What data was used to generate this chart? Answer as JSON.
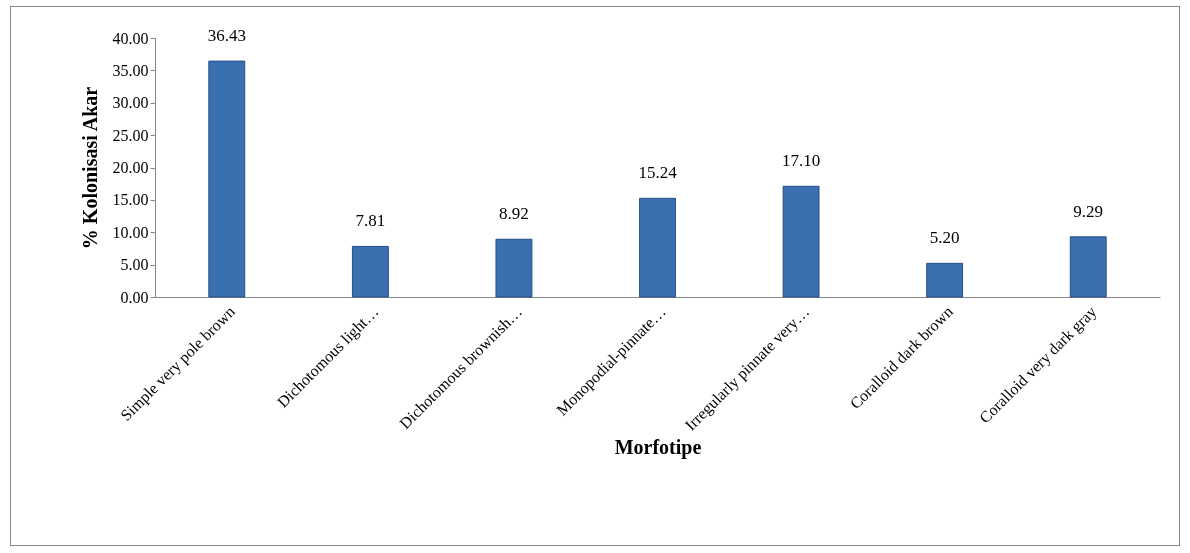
{
  "chart_data": {
    "type": "bar",
    "xlabel": "Morfotipe",
    "ylabel": "% Kolonisasi Akar",
    "categories": [
      "Simple very pole brown",
      "Dichotomous light…",
      "Dichotomous brownish…",
      "Monopodial-pinnate…",
      "Irregularly pinnate very…",
      "Coralloid dark brown",
      "Coralloid very dark gray"
    ],
    "values": [
      36.43,
      7.81,
      8.92,
      15.24,
      17.1,
      5.2,
      9.29
    ],
    "value_labels": [
      "36.43",
      "7.81",
      "8.92",
      "15.24",
      "17.10",
      "5.20",
      "9.29"
    ],
    "color": "#3a6fb0",
    "ylim": [
      0,
      40
    ],
    "yticks": [
      {
        "value": 0,
        "label": "0.00"
      },
      {
        "value": 5,
        "label": "5.00"
      },
      {
        "value": 10,
        "label": "10.00"
      },
      {
        "value": 15,
        "label": "15.00"
      },
      {
        "value": 20,
        "label": "20.00"
      },
      {
        "value": 25,
        "label": "25.00"
      },
      {
        "value": 30,
        "label": "30.00"
      },
      {
        "value": 35,
        "label": "35.00"
      },
      {
        "value": 40,
        "label": "40.00"
      }
    ],
    "grid": false
  }
}
